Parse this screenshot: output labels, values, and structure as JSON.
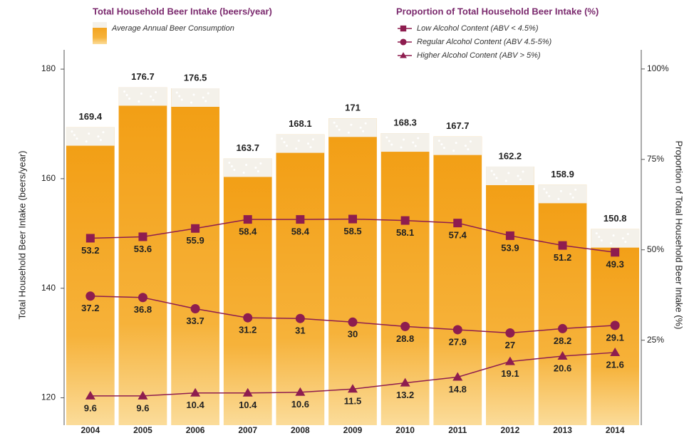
{
  "chart_data": {
    "type": "bar-line",
    "legend_title_left": "Total Household Beer Intake (beers/year)",
    "legend_title_right": "Proportion of Total Household Beer Intake (%)",
    "ylabel": "Total Household Beer Intake (beers/year)",
    "y2label": "Proportion of Total Household Beer Intake (%)",
    "categories": [
      "2004",
      "2005",
      "2006",
      "2007",
      "2008",
      "2009",
      "2010",
      "2011",
      "2012",
      "2013",
      "2014"
    ],
    "series": [
      {
        "name": "Average Annual Beer Consumption",
        "type": "bar",
        "color": "#f5a41c",
        "values": [
          169.4,
          176.7,
          176.5,
          163.7,
          168.1,
          171,
          168.3,
          167.7,
          162.2,
          158.9,
          150.8
        ]
      },
      {
        "name": "Low Alcohol Content (ABV < 4.5%)",
        "type": "line",
        "marker": "square",
        "axis": "y2",
        "color": "#8e1d4f",
        "values": [
          53.2,
          53.6,
          55.9,
          58.4,
          58.4,
          58.5,
          58.1,
          57.4,
          53.9,
          51.2,
          49.3
        ]
      },
      {
        "name": "Regular Alcohol Content (ABV 4.5-5%)",
        "type": "line",
        "marker": "circle",
        "axis": "y2",
        "color": "#8e1d4f",
        "values": [
          37.2,
          36.8,
          33.7,
          31.2,
          31,
          30,
          28.8,
          27.9,
          27,
          28.2,
          29.1
        ]
      },
      {
        "name": "Higher Alcohol Content (ABV > 5%)",
        "type": "line",
        "marker": "triangle",
        "axis": "y2",
        "color": "#8e1d4f",
        "values": [
          9.6,
          9.6,
          10.4,
          10.4,
          10.6,
          11.5,
          13.2,
          14.8,
          19.1,
          20.6,
          21.6
        ]
      }
    ],
    "ylim": [
      115,
      183
    ],
    "yticks": [
      120,
      140,
      160,
      180
    ],
    "y2lim": [
      1.5,
      104.5
    ],
    "y2ticks": [
      {
        "value": 25,
        "label": "25%"
      },
      {
        "value": 50,
        "label": "50%"
      },
      {
        "value": 75,
        "label": "75%"
      },
      {
        "value": 100,
        "label": "100%"
      }
    ]
  }
}
